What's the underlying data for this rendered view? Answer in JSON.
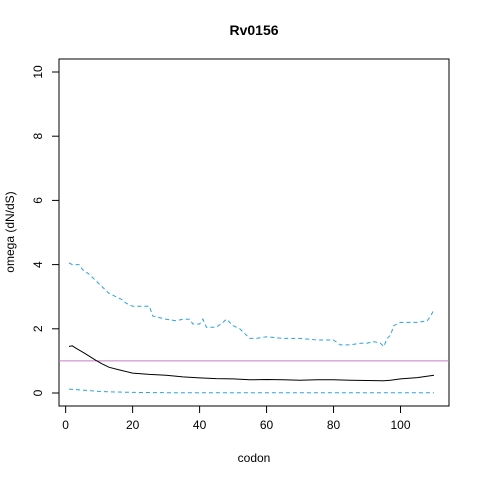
{
  "chart_data": {
    "type": "line",
    "title": "Rv0156",
    "xlabel": "codon",
    "ylabel": "omega (dN/dS)",
    "xlim": [
      1,
      110
    ],
    "ylim": [
      0,
      10
    ],
    "xticks": [
      0,
      20,
      40,
      60,
      80,
      100
    ],
    "yticks": [
      0,
      2,
      4,
      6,
      8,
      10
    ],
    "grid": false,
    "reference_line": {
      "y": 1,
      "color": "#c77cc7"
    },
    "series": [
      {
        "style": "solid",
        "color": "#000000",
        "x": [
          1,
          2,
          3,
          5,
          7,
          9,
          11,
          13,
          16,
          20,
          25,
          30,
          35,
          40,
          45,
          50,
          55,
          60,
          65,
          70,
          75,
          80,
          85,
          90,
          95,
          97,
          100,
          105,
          110
        ],
        "y": [
          1.45,
          1.47,
          1.4,
          1.28,
          1.15,
          1.02,
          0.9,
          0.8,
          0.72,
          0.62,
          0.58,
          0.55,
          0.5,
          0.47,
          0.45,
          0.44,
          0.41,
          0.42,
          0.41,
          0.4,
          0.41,
          0.41,
          0.4,
          0.39,
          0.38,
          0.4,
          0.44,
          0.48,
          0.55
        ]
      },
      {
        "style": "dashed",
        "color": "#29a3e0",
        "x": [
          1,
          2,
          4,
          5,
          7,
          8,
          10,
          12,
          13,
          15,
          17,
          18,
          20,
          22,
          25,
          26,
          28,
          30,
          33,
          35,
          37,
          38,
          40,
          41,
          42,
          45,
          47,
          48,
          50,
          52,
          53,
          55,
          57,
          60,
          65,
          70,
          75,
          80,
          82,
          85,
          88,
          90,
          92,
          94,
          95,
          96,
          97,
          98,
          100,
          105,
          108,
          109,
          110
        ],
        "y": [
          4.05,
          4.0,
          4.0,
          3.85,
          3.7,
          3.6,
          3.4,
          3.2,
          3.1,
          3.0,
          2.9,
          2.8,
          2.7,
          2.7,
          2.7,
          2.4,
          2.35,
          2.3,
          2.25,
          2.3,
          2.3,
          2.15,
          2.15,
          2.3,
          2.05,
          2.05,
          2.2,
          2.3,
          2.1,
          2.0,
          1.9,
          1.7,
          1.7,
          1.75,
          1.7,
          1.7,
          1.65,
          1.65,
          1.5,
          1.5,
          1.55,
          1.55,
          1.6,
          1.55,
          1.45,
          1.7,
          1.8,
          2.1,
          2.2,
          2.2,
          2.25,
          2.4,
          2.6
        ]
      },
      {
        "style": "dashed",
        "color": "#29a3e0",
        "x": [
          1,
          5,
          10,
          15,
          20,
          30,
          40,
          50,
          60,
          70,
          80,
          90,
          100,
          110
        ],
        "y": [
          0.12,
          0.09,
          0.05,
          0.03,
          0.02,
          0.01,
          0.01,
          0.01,
          0.01,
          0.01,
          0.01,
          0.01,
          0.01,
          0.01
        ]
      }
    ]
  }
}
